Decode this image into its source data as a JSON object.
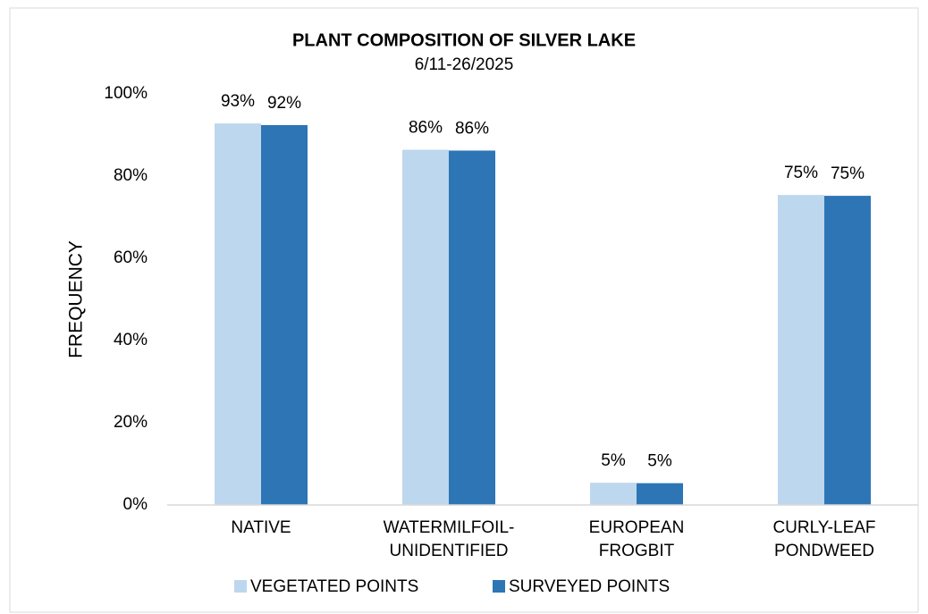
{
  "chart_data": {
    "type": "bar",
    "title": "PLANT COMPOSITION OF SILVER LAKE",
    "subtitle": "6/11-26/2025",
    "y_label": "FREQUENCY",
    "categories": [
      [
        "NATIVE"
      ],
      [
        "WATERMILFOIL-",
        "UNIDENTIFIED"
      ],
      [
        "EUROPEAN",
        "FROGBIT"
      ],
      [
        "CURLY-LEAF",
        "PONDWEED"
      ]
    ],
    "series": [
      {
        "name": "VEGETATED POINTS",
        "color": "#bdd7ee",
        "values": [
          92.8,
          86.4,
          5.4,
          75.4
        ],
        "value_labels": [
          "93%",
          "86%",
          "5%",
          "75%"
        ]
      },
      {
        "name": "SURVEYED POINTS",
        "color": "#2e75b6",
        "values": [
          92.4,
          86.2,
          5.3,
          75.2
        ],
        "value_labels": [
          "92%",
          "86%",
          "5%",
          "75%"
        ]
      }
    ],
    "ylim": [
      0,
      100
    ],
    "yticks": [
      {
        "value": 0,
        "label": "0%"
      },
      {
        "value": 20,
        "label": "20%"
      },
      {
        "value": 40,
        "label": "40%"
      },
      {
        "value": 60,
        "label": "60%"
      },
      {
        "value": 80,
        "label": "80%"
      },
      {
        "value": 100,
        "label": "100%"
      }
    ],
    "grid": false,
    "legend": "bottom"
  }
}
